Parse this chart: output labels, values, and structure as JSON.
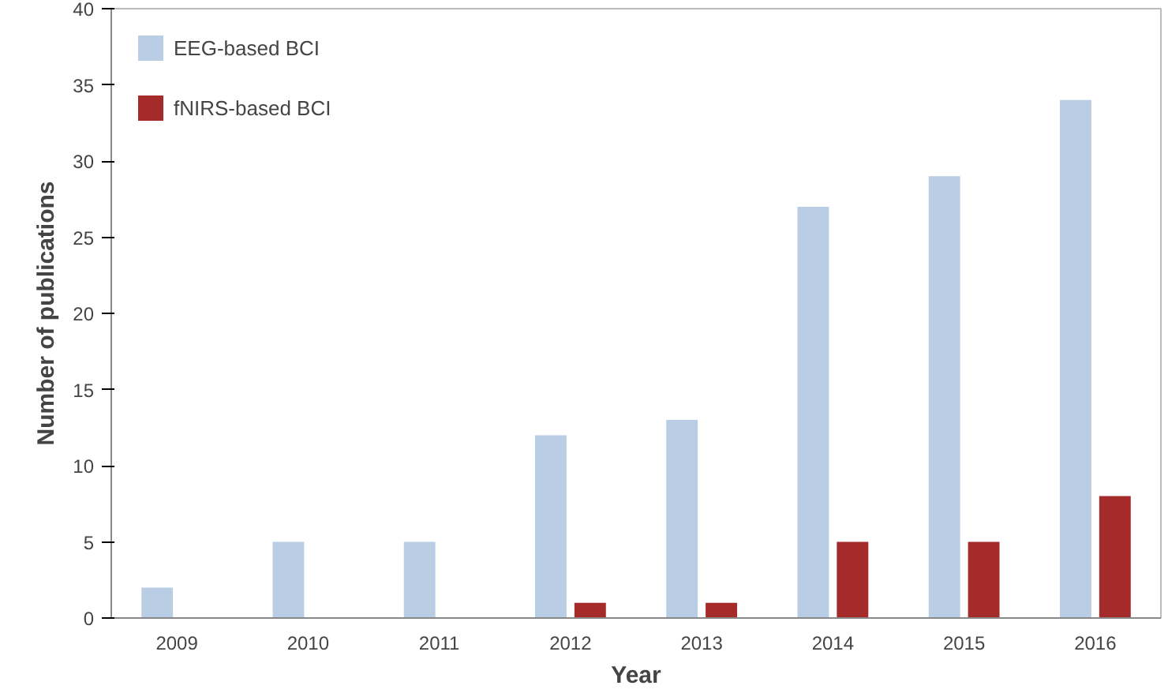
{
  "chart_data": {
    "type": "bar",
    "xlabel": "Year",
    "ylabel": "Number of publications",
    "categories": [
      "2009",
      "2010",
      "2011",
      "2012",
      "2013",
      "2014",
      "2015",
      "2016"
    ],
    "series": [
      {
        "name": "EEG-based BCI",
        "color": "#b9cde5",
        "values": [
          2,
          5,
          5,
          12,
          13,
          27,
          29,
          34
        ]
      },
      {
        "name": "fNIRS-based BCI",
        "color": "#a52a2a",
        "values": [
          0,
          0,
          0,
          1,
          1,
          5,
          5,
          8
        ]
      }
    ],
    "ylim": [
      0,
      40
    ],
    "yticks": [
      0,
      5,
      10,
      15,
      20,
      25,
      30,
      35,
      40
    ],
    "grid": false,
    "legend": "top left"
  }
}
